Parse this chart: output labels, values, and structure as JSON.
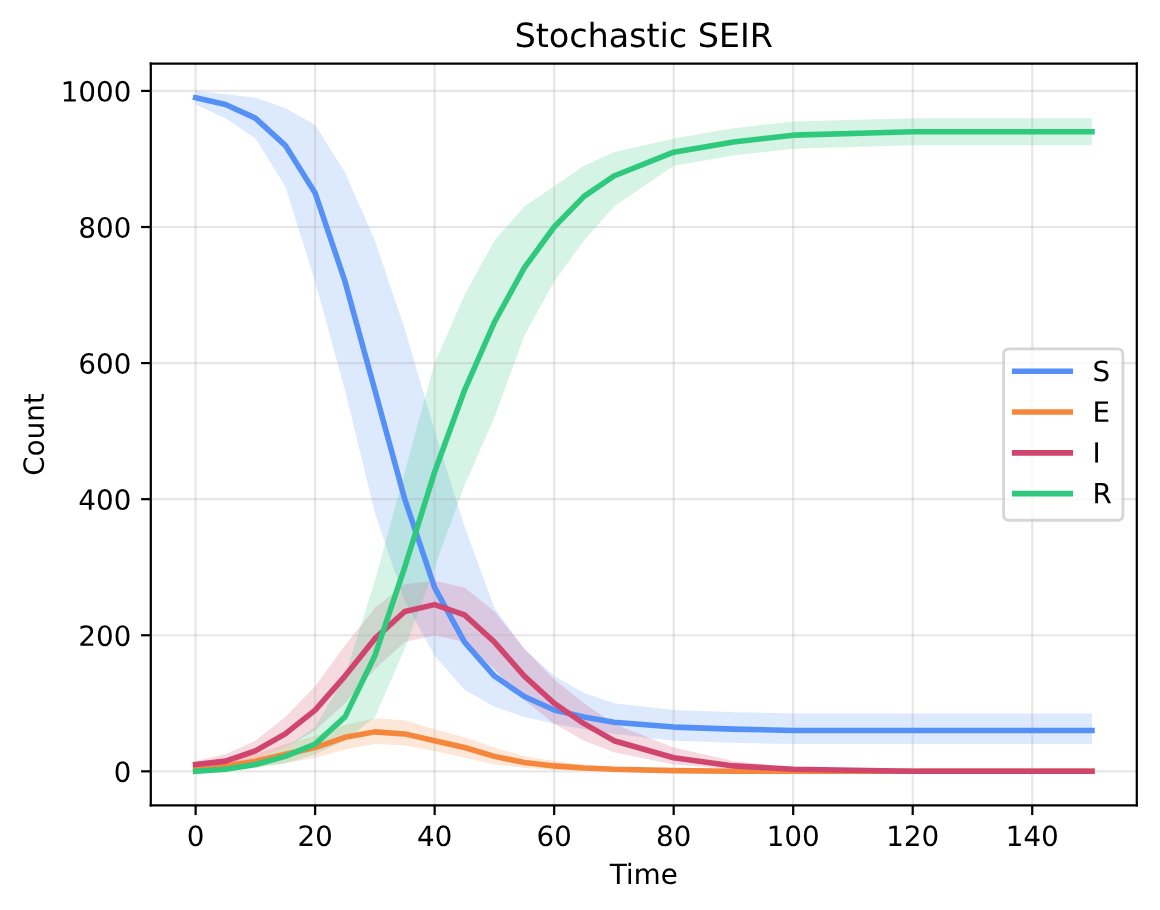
{
  "chart_data": {
    "type": "line",
    "title": "Stochastic SEIR",
    "xlabel": "Time",
    "ylabel": "Count",
    "x": [
      0,
      5,
      10,
      15,
      20,
      25,
      30,
      35,
      40,
      45,
      50,
      55,
      60,
      65,
      70,
      80,
      90,
      100,
      120,
      150
    ],
    "series": [
      {
        "name": "S",
        "color": "#5590f7",
        "values": [
          990,
          980,
          960,
          920,
          850,
          720,
          560,
          400,
          270,
          190,
          140,
          110,
          90,
          80,
          72,
          65,
          62,
          60,
          60,
          60
        ],
        "lower": [
          980,
          960,
          930,
          860,
          720,
          560,
          380,
          250,
          170,
          120,
          95,
          80,
          70,
          62,
          55,
          45,
          42,
          40,
          40,
          40
        ],
        "upper": [
          1000,
          995,
          990,
          975,
          950,
          880,
          780,
          650,
          500,
          360,
          240,
          180,
          140,
          115,
          100,
          90,
          87,
          85,
          85,
          85
        ]
      },
      {
        "name": "E",
        "color": "#f5873d",
        "values": [
          5,
          8,
          15,
          25,
          35,
          50,
          58,
          55,
          45,
          35,
          22,
          13,
          8,
          5,
          3,
          1,
          0,
          0,
          0,
          0
        ],
        "lower": [
          0,
          2,
          6,
          12,
          20,
          32,
          40,
          38,
          30,
          20,
          10,
          5,
          2,
          1,
          0,
          0,
          0,
          0,
          0,
          0
        ],
        "upper": [
          10,
          15,
          25,
          40,
          52,
          68,
          78,
          75,
          62,
          50,
          35,
          22,
          15,
          10,
          6,
          3,
          1,
          0,
          0,
          0
        ]
      },
      {
        "name": "I",
        "color": "#d0456e",
        "values": [
          10,
          15,
          30,
          55,
          90,
          140,
          195,
          235,
          245,
          230,
          190,
          140,
          100,
          70,
          45,
          20,
          8,
          3,
          0,
          0
        ],
        "lower": [
          5,
          8,
          18,
          35,
          60,
          100,
          150,
          190,
          200,
          190,
          150,
          105,
          70,
          45,
          28,
          10,
          3,
          1,
          0,
          0
        ],
        "upper": [
          15,
          25,
          45,
          80,
          125,
          185,
          240,
          275,
          280,
          270,
          235,
          180,
          135,
          100,
          70,
          35,
          15,
          6,
          1,
          0
        ]
      },
      {
        "name": "R",
        "color": "#2fc97e",
        "values": [
          0,
          3,
          10,
          22,
          40,
          80,
          170,
          300,
          440,
          560,
          660,
          740,
          800,
          845,
          875,
          910,
          925,
          935,
          940,
          940
        ],
        "lower": [
          0,
          1,
          5,
          12,
          25,
          45,
          80,
          180,
          300,
          420,
          520,
          640,
          720,
          780,
          830,
          890,
          905,
          915,
          920,
          920
        ],
        "upper": [
          2,
          6,
          18,
          35,
          65,
          140,
          280,
          440,
          600,
          700,
          780,
          830,
          860,
          890,
          910,
          930,
          945,
          955,
          960,
          960
        ]
      }
    ],
    "xlim": [
      -7.5,
      157.5
    ],
    "ylim": [
      -50,
      1040
    ],
    "xticks": [
      0,
      20,
      40,
      60,
      80,
      100,
      120,
      140
    ],
    "yticks": [
      0,
      200,
      400,
      600,
      800,
      1000
    ],
    "grid": true,
    "legend": "right",
    "marker": "none",
    "line_style": "solid"
  }
}
